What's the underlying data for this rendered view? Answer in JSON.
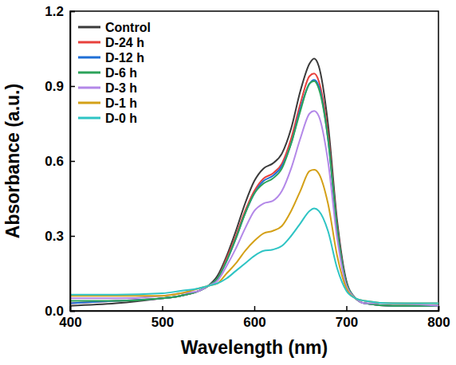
{
  "chart_data": {
    "type": "line",
    "x_label": "Wavelength (nm)",
    "y_label": "Absorbance (a.u.)",
    "x": [
      400,
      450,
      500,
      520,
      540,
      550,
      560,
      570,
      580,
      590,
      600,
      610,
      620,
      630,
      640,
      650,
      660,
      665,
      670,
      680,
      690,
      700,
      710,
      720,
      750,
      800
    ],
    "xlim": [
      400,
      800
    ],
    "xticks": [
      400,
      500,
      600,
      700,
      800
    ],
    "ylim": [
      0,
      1.2
    ],
    "yticks": [
      {
        "value": 0,
        "label": "0.0"
      },
      0.3,
      0.6,
      0.9,
      1.2
    ],
    "legend": "upper left",
    "series": [
      {
        "name": "Control",
        "color": "#3a3a3a",
        "values": [
          0.02,
          0.03,
          0.05,
          0.06,
          0.08,
          0.1,
          0.14,
          0.22,
          0.32,
          0.43,
          0.52,
          0.57,
          0.59,
          0.63,
          0.73,
          0.88,
          0.99,
          1.01,
          0.98,
          0.75,
          0.36,
          0.12,
          0.05,
          0.03,
          0.02,
          0.02
        ]
      },
      {
        "name": "D-24 h",
        "color": "#e8403c",
        "values": [
          0.03,
          0.04,
          0.05,
          0.06,
          0.08,
          0.1,
          0.13,
          0.21,
          0.3,
          0.4,
          0.48,
          0.53,
          0.55,
          0.59,
          0.69,
          0.83,
          0.94,
          0.95,
          0.92,
          0.71,
          0.34,
          0.11,
          0.05,
          0.03,
          0.02,
          0.02
        ]
      },
      {
        "name": "D-12 h",
        "color": "#1f6fd6",
        "values": [
          0.03,
          0.04,
          0.05,
          0.06,
          0.08,
          0.1,
          0.13,
          0.2,
          0.29,
          0.39,
          0.47,
          0.52,
          0.54,
          0.58,
          0.67,
          0.81,
          0.91,
          0.925,
          0.9,
          0.69,
          0.33,
          0.11,
          0.05,
          0.03,
          0.02,
          0.02
        ]
      },
      {
        "name": "D-6 h",
        "color": "#2ca35a",
        "values": [
          0.04,
          0.04,
          0.05,
          0.06,
          0.08,
          0.1,
          0.13,
          0.2,
          0.29,
          0.39,
          0.47,
          0.51,
          0.53,
          0.57,
          0.67,
          0.8,
          0.91,
          0.92,
          0.89,
          0.69,
          0.33,
          0.11,
          0.05,
          0.03,
          0.02,
          0.02
        ]
      },
      {
        "name": "D-3 h",
        "color": "#b388e8",
        "values": [
          0.05,
          0.05,
          0.06,
          0.07,
          0.08,
          0.1,
          0.12,
          0.18,
          0.25,
          0.33,
          0.4,
          0.43,
          0.44,
          0.48,
          0.57,
          0.69,
          0.79,
          0.8,
          0.78,
          0.6,
          0.29,
          0.1,
          0.05,
          0.03,
          0.03,
          0.02
        ]
      },
      {
        "name": "D-1 h",
        "color": "#d4a017",
        "values": [
          0.06,
          0.06,
          0.06,
          0.07,
          0.09,
          0.1,
          0.11,
          0.15,
          0.19,
          0.24,
          0.28,
          0.31,
          0.32,
          0.34,
          0.4,
          0.48,
          0.56,
          0.565,
          0.55,
          0.43,
          0.22,
          0.09,
          0.05,
          0.04,
          0.03,
          0.03
        ]
      },
      {
        "name": "D-0 h",
        "color": "#2ec4c4",
        "values": [
          0.065,
          0.065,
          0.07,
          0.08,
          0.09,
          0.1,
          0.11,
          0.13,
          0.16,
          0.19,
          0.22,
          0.24,
          0.245,
          0.26,
          0.3,
          0.35,
          0.4,
          0.41,
          0.4,
          0.32,
          0.17,
          0.08,
          0.05,
          0.04,
          0.03,
          0.03
        ]
      }
    ]
  }
}
